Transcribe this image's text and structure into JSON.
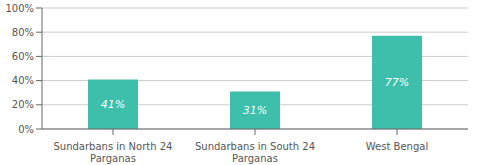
{
  "chart_data": {
    "type": "bar",
    "categories": [
      "Sundarbans in North 24\nParganas",
      "Sundarbans in South 24\nParganas",
      "West Bengal"
    ],
    "values": [
      41,
      31,
      77
    ],
    "value_labels": [
      "41%",
      "31%",
      "77%"
    ],
    "color": "#3dbfab",
    "ylim": [
      0,
      100
    ],
    "yticks": [
      {
        "value": 0,
        "label": "0%"
      },
      {
        "value": 20,
        "label": "20%"
      },
      {
        "value": 40,
        "label": "40%"
      },
      {
        "value": 60,
        "label": "60%"
      },
      {
        "value": 80,
        "label": "80%"
      },
      {
        "value": 100,
        "label": "100%"
      }
    ],
    "grid": true,
    "data_labels": true
  }
}
